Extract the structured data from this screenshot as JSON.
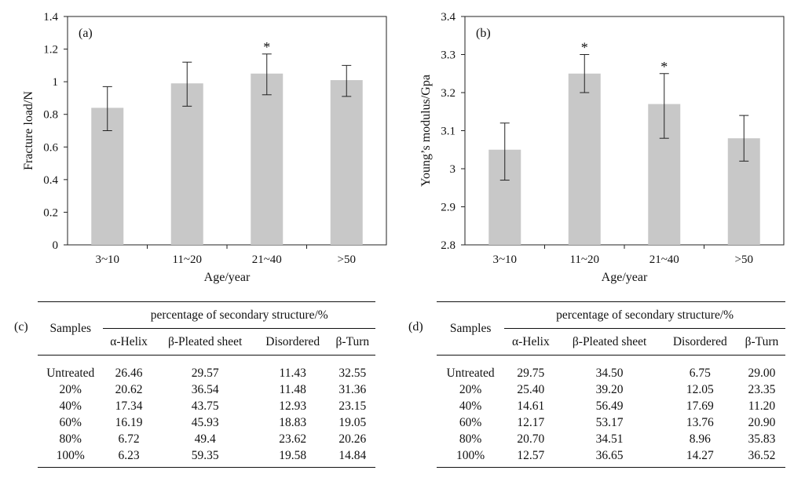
{
  "chart_data": [
    {
      "panel": "(a)",
      "type": "bar",
      "categories": [
        "3~10",
        "11~20",
        "21~40",
        ">50"
      ],
      "values": [
        0.84,
        0.99,
        1.05,
        1.01
      ],
      "error_low": [
        0.7,
        0.85,
        0.92,
        0.91
      ],
      "error_high": [
        0.97,
        1.12,
        1.17,
        1.1
      ],
      "significant": [
        false,
        false,
        true,
        false
      ],
      "xlabel": "Age/year",
      "ylabel": "Fracture load/N",
      "ylim": [
        0,
        1.4
      ],
      "yticks": [
        "0",
        "0.2",
        "0.4",
        "0.6",
        "0.8",
        "1",
        "1.2",
        "1.4"
      ],
      "bar_color": "#c8c8c8",
      "grid": false
    },
    {
      "panel": "(b)",
      "type": "bar",
      "categories": [
        "3~10",
        "11~20",
        "21~40",
        ">50"
      ],
      "values": [
        3.05,
        3.25,
        3.17,
        3.08
      ],
      "error_low": [
        2.97,
        3.2,
        3.08,
        3.02
      ],
      "error_high": [
        3.12,
        3.3,
        3.25,
        3.14
      ],
      "significant": [
        false,
        true,
        true,
        false
      ],
      "xlabel": "Age/year",
      "ylabel": "Young’s modulus/Gpa",
      "ylim": [
        2.8,
        3.4
      ],
      "yticks": [
        "2.8",
        "2.9",
        "3",
        "3.1",
        "3.2",
        "3.3",
        "3.4"
      ],
      "bar_color": "#c8c8c8",
      "grid": false
    }
  ],
  "tables": {
    "c": {
      "label": "(c)",
      "samples_header": "Samples",
      "group_header": "percentage of secondary structure/%",
      "columns": [
        "α-Helix",
        "β-Pleated sheet",
        "Disordered",
        "β-Turn"
      ],
      "rows": [
        {
          "sample": "Untreated",
          "values": [
            "26.46",
            "29.57",
            "11.43",
            "32.55"
          ]
        },
        {
          "sample": "20%",
          "values": [
            "20.62",
            "36.54",
            "11.48",
            "31.36"
          ]
        },
        {
          "sample": "40%",
          "values": [
            "17.34",
            "43.75",
            "12.93",
            "23.15"
          ]
        },
        {
          "sample": "60%",
          "values": [
            "16.19",
            "45.93",
            "18.83",
            "19.05"
          ]
        },
        {
          "sample": "80%",
          "values": [
            "6.72",
            "49.4",
            "23.62",
            "20.26"
          ]
        },
        {
          "sample": "100%",
          "values": [
            "6.23",
            "59.35",
            "19.58",
            "14.84"
          ]
        }
      ]
    },
    "d": {
      "label": "(d)",
      "samples_header": "Samples",
      "group_header": "percentage of secondary structure/%",
      "columns": [
        "α-Helix",
        "β-Pleated sheet",
        "Disordered",
        "β-Turn"
      ],
      "rows": [
        {
          "sample": "Untreated",
          "values": [
            "29.75",
            "34.50",
            "6.75",
            "29.00"
          ]
        },
        {
          "sample": "20%",
          "values": [
            "25.40",
            "39.20",
            "12.05",
            "23.35"
          ]
        },
        {
          "sample": "40%",
          "values": [
            "14.61",
            "56.49",
            "17.69",
            "11.20"
          ]
        },
        {
          "sample": "60%",
          "values": [
            "12.17",
            "53.17",
            "13.76",
            "20.90"
          ]
        },
        {
          "sample": "80%",
          "values": [
            "20.70",
            "34.51",
            "8.96",
            "35.83"
          ]
        },
        {
          "sample": "100%",
          "values": [
            "12.57",
            "36.65",
            "14.27",
            "36.52"
          ]
        }
      ]
    }
  }
}
